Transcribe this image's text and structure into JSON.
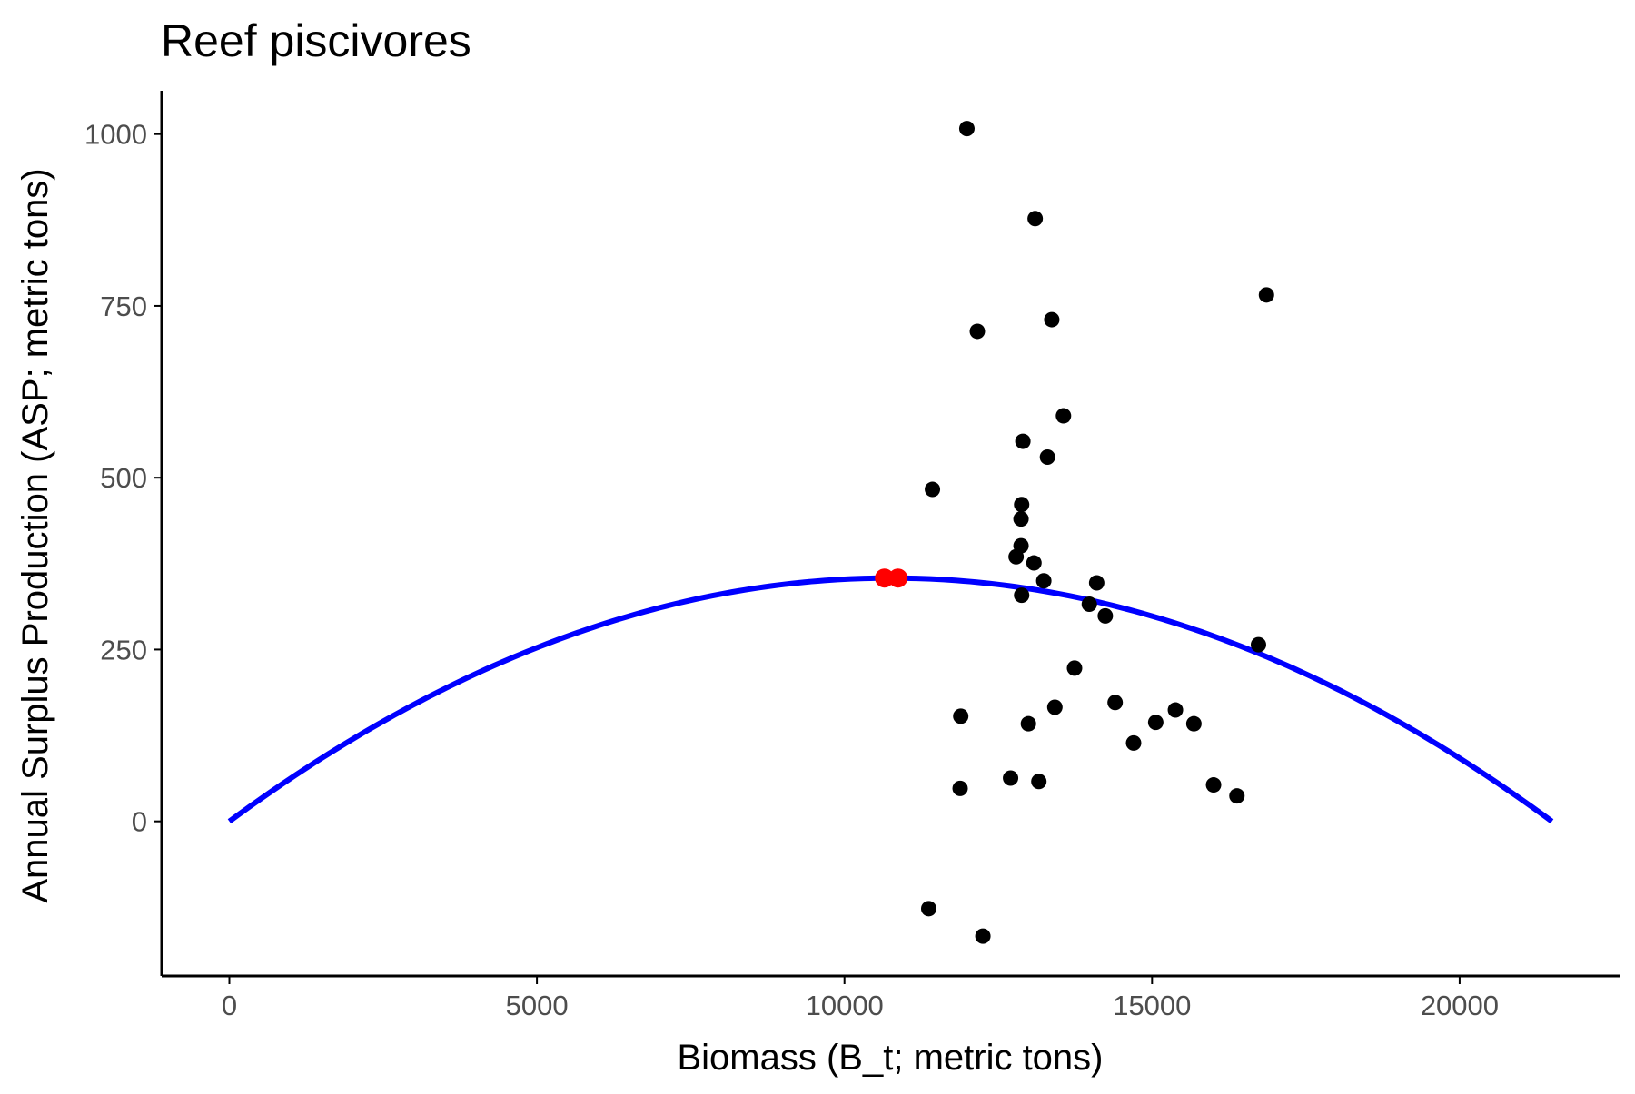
{
  "chart_data": {
    "type": "scatter",
    "title": "Reef piscivores",
    "xlabel": "Biomass (B_t; metric tons)",
    "ylabel": "Annual Surplus Production (ASP; metric tons)",
    "xlim": [
      -1100,
      22600
    ],
    "ylim": [
      -225,
      1063
    ],
    "x_ticks": [
      0,
      5000,
      10000,
      15000,
      20000
    ],
    "y_ticks": [
      0,
      250,
      500,
      750,
      1000
    ],
    "grid": false,
    "legend": "none",
    "colors": {
      "points": "#000000",
      "curve": "#0000ff",
      "peak_points": "#ff0000",
      "axis": "#000000",
      "tick_text": "#4d4d4d"
    },
    "series": [
      {
        "type": "scatter",
        "points": [
          {
            "x": 11990,
            "y": 1008
          },
          {
            "x": 13100,
            "y": 877
          },
          {
            "x": 16860,
            "y": 766
          },
          {
            "x": 13370,
            "y": 730
          },
          {
            "x": 12160,
            "y": 713
          },
          {
            "x": 13560,
            "y": 590
          },
          {
            "x": 12900,
            "y": 553
          },
          {
            "x": 13300,
            "y": 530
          },
          {
            "x": 11430,
            "y": 483
          },
          {
            "x": 12880,
            "y": 461
          },
          {
            "x": 12870,
            "y": 440
          },
          {
            "x": 12870,
            "y": 401
          },
          {
            "x": 12790,
            "y": 385
          },
          {
            "x": 13080,
            "y": 376
          },
          {
            "x": 13240,
            "y": 350
          },
          {
            "x": 14100,
            "y": 347
          },
          {
            "x": 12880,
            "y": 329
          },
          {
            "x": 13980,
            "y": 316
          },
          {
            "x": 14240,
            "y": 299
          },
          {
            "x": 16730,
            "y": 257
          },
          {
            "x": 13740,
            "y": 223
          },
          {
            "x": 14400,
            "y": 173
          },
          {
            "x": 13420,
            "y": 166
          },
          {
            "x": 15380,
            "y": 162
          },
          {
            "x": 11890,
            "y": 153
          },
          {
            "x": 15060,
            "y": 144
          },
          {
            "x": 15680,
            "y": 142
          },
          {
            "x": 12990,
            "y": 142
          },
          {
            "x": 14700,
            "y": 114
          },
          {
            "x": 12700,
            "y": 63
          },
          {
            "x": 13160,
            "y": 58
          },
          {
            "x": 16000,
            "y": 53
          },
          {
            "x": 11880,
            "y": 48
          },
          {
            "x": 16380,
            "y": 37
          },
          {
            "x": 11370,
            "y": -127
          },
          {
            "x": 12250,
            "y": -167
          }
        ]
      },
      {
        "type": "line",
        "model": "parabola",
        "x_range": [
          0,
          21500
        ],
        "peak": {
          "x": 10750,
          "y": 354
        }
      },
      {
        "type": "scatter",
        "points": [
          {
            "x": 10650,
            "y": 354
          },
          {
            "x": 10870,
            "y": 354
          }
        ]
      }
    ]
  }
}
